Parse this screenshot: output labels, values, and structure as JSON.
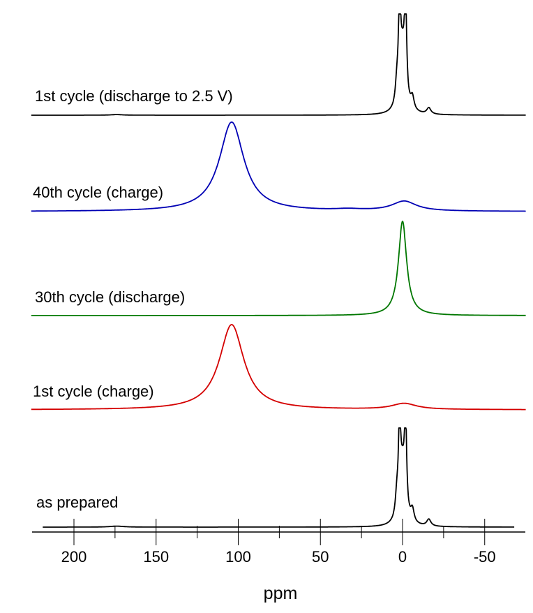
{
  "chart_data": {
    "type": "line",
    "title": "",
    "xlabel": "ppm",
    "ylabel": "",
    "xlim": [
      226,
      -75
    ],
    "x_reversed": true,
    "grid": false,
    "x_ticks_major": [
      200,
      150,
      100,
      50,
      0,
      -50
    ],
    "x_ticks_minor": [
      175,
      125,
      75,
      25,
      -25
    ],
    "x_tick_labels": [
      "200",
      "150",
      "100",
      "50",
      "0",
      "-50"
    ],
    "series": [
      {
        "name": "1st cycle (discharge to 2.5 V)",
        "color": "#000000",
        "x_range": [
          226,
          -75
        ],
        "peaks": [
          {
            "pos": 1.8,
            "height": 1.0,
            "width": 0.7,
            "clip": true
          },
          {
            "pos": -1.8,
            "height": 1.0,
            "width": 0.7,
            "clip": true
          },
          {
            "pos": 0,
            "height": 0.55,
            "width": 2.0
          },
          {
            "pos": 3.5,
            "height": 0.18,
            "width": 1.0
          },
          {
            "pos": -6,
            "height": 0.12,
            "width": 1.2
          },
          {
            "pos": -16,
            "height": 0.06,
            "width": 1.5
          },
          {
            "pos": 174,
            "height": 0.006,
            "width": 4
          }
        ]
      },
      {
        "name": "40th cycle (charge)",
        "color": "#0000b4",
        "x_range": [
          226,
          -75
        ],
        "peaks": [
          {
            "pos": 104,
            "height": 1.0,
            "width": 9
          },
          {
            "pos": -1,
            "height": 0.11,
            "width": 9
          },
          {
            "pos": 33,
            "height": 0.015,
            "width": 10
          }
        ]
      },
      {
        "name": "30th cycle (discharge)",
        "color": "#007700",
        "x_range": [
          226,
          -75
        ],
        "peaks": [
          {
            "pos": 0,
            "height": 1.0,
            "width": 3.0
          }
        ]
      },
      {
        "name": "1st cycle (charge)",
        "color": "#d40000",
        "x_range": [
          226,
          -75
        ],
        "peaks": [
          {
            "pos": 104,
            "height": 1.0,
            "width": 9
          },
          {
            "pos": -1,
            "height": 0.07,
            "width": 9
          }
        ]
      },
      {
        "name": "as prepared",
        "color": "#000000",
        "x_range": [
          219,
          -68
        ],
        "peaks": [
          {
            "pos": 1.8,
            "height": 1.0,
            "width": 0.7,
            "clip": true
          },
          {
            "pos": -1.8,
            "height": 1.0,
            "width": 0.7,
            "clip": true
          },
          {
            "pos": 0,
            "height": 0.55,
            "width": 2.0
          },
          {
            "pos": 3.5,
            "height": 0.2,
            "width": 1.0
          },
          {
            "pos": -6,
            "height": 0.13,
            "width": 1.2
          },
          {
            "pos": -16,
            "height": 0.07,
            "width": 1.5
          },
          {
            "pos": 174,
            "height": 0.01,
            "width": 5
          }
        ]
      }
    ]
  }
}
